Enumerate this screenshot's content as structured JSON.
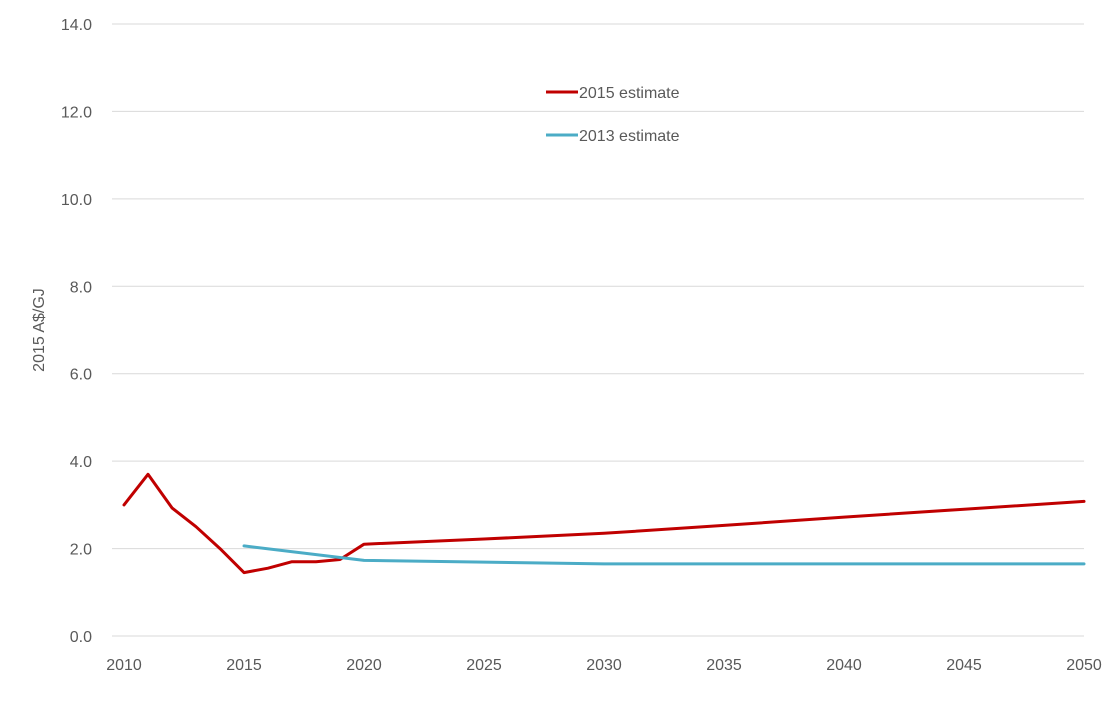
{
  "chart_data": {
    "type": "line",
    "title": "",
    "xlabel": "",
    "ylabel": "2015 A$/GJ",
    "xlim": [
      2010,
      2050
    ],
    "ylim": [
      0,
      14
    ],
    "x_ticks": [
      "2010",
      "2015",
      "2020",
      "2025",
      "2030",
      "2035",
      "2040",
      "2045",
      "2050"
    ],
    "y_ticks": [
      "0.0",
      "2.0",
      "4.0",
      "6.0",
      "8.0",
      "10.0",
      "12.0",
      "14.0"
    ],
    "grid": "horizontal",
    "legend_position": "top-center",
    "series": [
      {
        "name": "2015 estimate",
        "color": "#c00000",
        "points": [
          [
            2010,
            3.0
          ],
          [
            2011,
            3.7
          ],
          [
            2012,
            2.93
          ],
          [
            2013,
            2.5
          ],
          [
            2014,
            2.0
          ],
          [
            2015,
            1.45
          ],
          [
            2016,
            1.55
          ],
          [
            2017,
            1.7
          ],
          [
            2018,
            1.7
          ],
          [
            2019,
            1.75
          ],
          [
            2020,
            2.1
          ],
          [
            2025,
            2.22
          ],
          [
            2030,
            2.35
          ],
          [
            2035,
            2.53
          ],
          [
            2040,
            2.72
          ],
          [
            2045,
            2.9
          ],
          [
            2050,
            3.08
          ]
        ]
      },
      {
        "name": "2013 estimate",
        "color": "#4bacc6",
        "points": [
          [
            2015,
            2.06
          ],
          [
            2020,
            1.73
          ],
          [
            2025,
            1.69
          ],
          [
            2030,
            1.65
          ],
          [
            2035,
            1.65
          ],
          [
            2040,
            1.65
          ],
          [
            2045,
            1.65
          ],
          [
            2050,
            1.65
          ]
        ]
      }
    ]
  }
}
